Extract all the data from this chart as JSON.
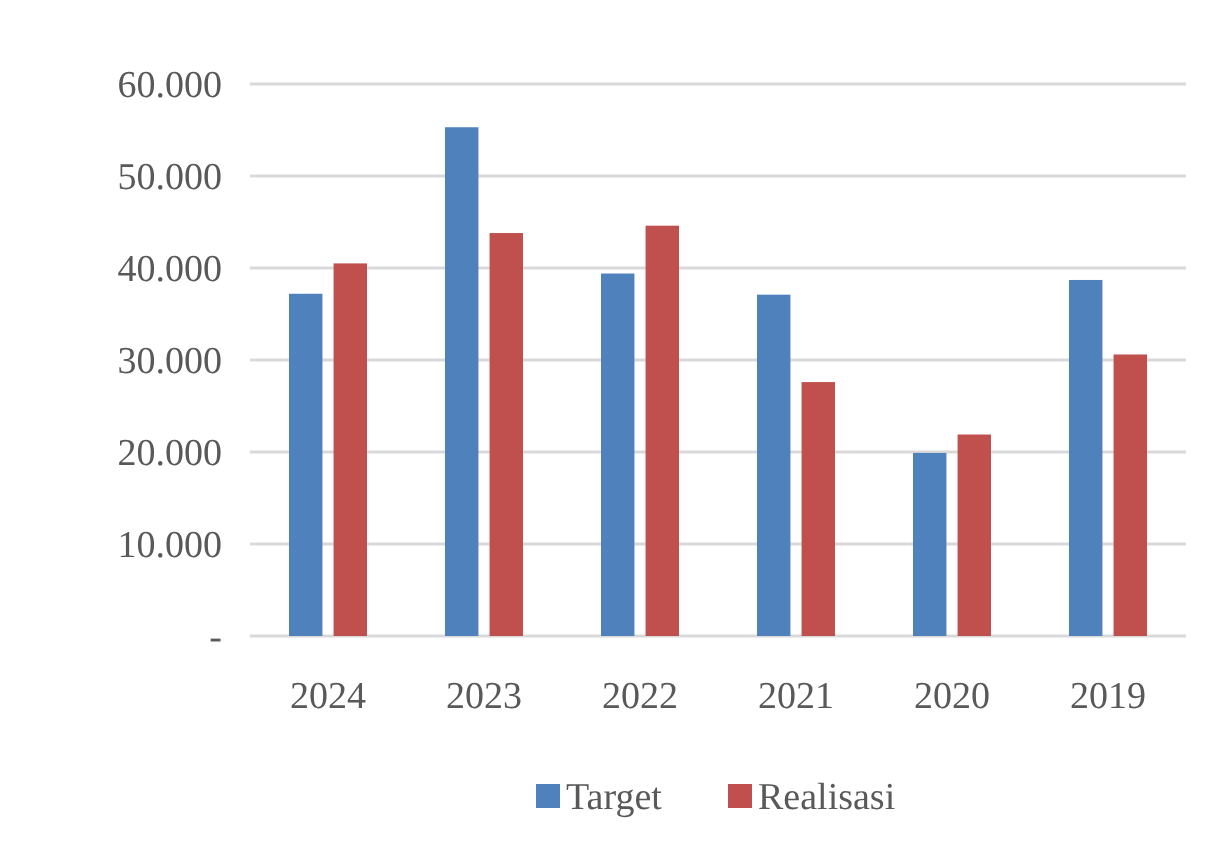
{
  "chart_data": {
    "type": "bar",
    "categories": [
      "2024",
      "2023",
      "2022",
      "2021",
      "2020",
      "2019"
    ],
    "series": [
      {
        "name": "Target",
        "color": "#4f81bd",
        "values": [
          37200,
          55300,
          39400,
          37100,
          19900,
          38700
        ]
      },
      {
        "name": "Realisasi",
        "color": "#c0504d",
        "values": [
          40500,
          43800,
          44600,
          27600,
          21900,
          30600
        ]
      }
    ],
    "ylim": [
      0,
      60000
    ],
    "yticks": [
      {
        "value": 0,
        "label": "-"
      },
      {
        "value": 10000,
        "label": "10.000"
      },
      {
        "value": 20000,
        "label": "20.000"
      },
      {
        "value": 30000,
        "label": "30.000"
      },
      {
        "value": 40000,
        "label": "40.000"
      },
      {
        "value": 50000,
        "label": "50.000"
      },
      {
        "value": 60000,
        "label": "60.000"
      }
    ],
    "grid": "y",
    "legend": "bottom"
  }
}
